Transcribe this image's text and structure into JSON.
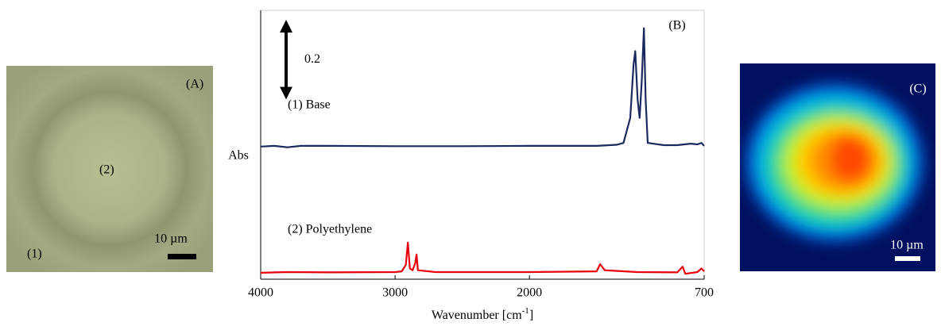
{
  "panels": {
    "a": {
      "label": "(A)",
      "region_1": "(1)",
      "region_2": "(2)",
      "scale": "10 µm"
    },
    "c": {
      "label": "(C)",
      "scale": "10 µm"
    }
  },
  "chart_data": {
    "type": "line",
    "panel_label": "(B)",
    "y_label": "Abs",
    "x_label": "Wavenumber [cm",
    "x_label_sup": "-1",
    "x_label_end": "]",
    "xlim": [
      4000,
      700
    ],
    "xticks": [
      4000,
      3000,
      2000,
      700
    ],
    "ylim": [
      0,
      0.75
    ],
    "scale_bar": 0.2,
    "series": [
      {
        "name": "(1) Base",
        "color": "#1b2a5e",
        "x": [
          4000,
          3900,
          3800,
          3700,
          3500,
          3000,
          2500,
          2000,
          1500,
          1350,
          1300,
          1250,
          1225,
          1213,
          1195,
          1180,
          1165,
          1148,
          1135,
          1120,
          1000,
          900,
          800,
          750,
          720,
          700
        ],
        "values": [
          0.37,
          0.372,
          0.368,
          0.372,
          0.372,
          0.371,
          0.371,
          0.372,
          0.372,
          0.375,
          0.38,
          0.45,
          0.6,
          0.636,
          0.5,
          0.45,
          0.55,
          0.7,
          0.5,
          0.38,
          0.374,
          0.374,
          0.378,
          0.376,
          0.38,
          0.372
        ]
      },
      {
        "name": "(2) Polyethylene",
        "color": "#e8000b",
        "x": [
          4000,
          3800,
          3500,
          3000,
          2950,
          2920,
          2905,
          2890,
          2870,
          2850,
          2840,
          2830,
          2700,
          2000,
          1500,
          1474,
          1440,
          1200,
          900,
          860,
          840,
          750,
          720,
          700
        ],
        "values": [
          0.018,
          0.02,
          0.019,
          0.02,
          0.022,
          0.04,
          0.102,
          0.03,
          0.025,
          0.045,
          0.069,
          0.025,
          0.02,
          0.02,
          0.022,
          0.042,
          0.025,
          0.02,
          0.019,
          0.035,
          0.015,
          0.02,
          0.03,
          0.022
        ]
      }
    ]
  }
}
